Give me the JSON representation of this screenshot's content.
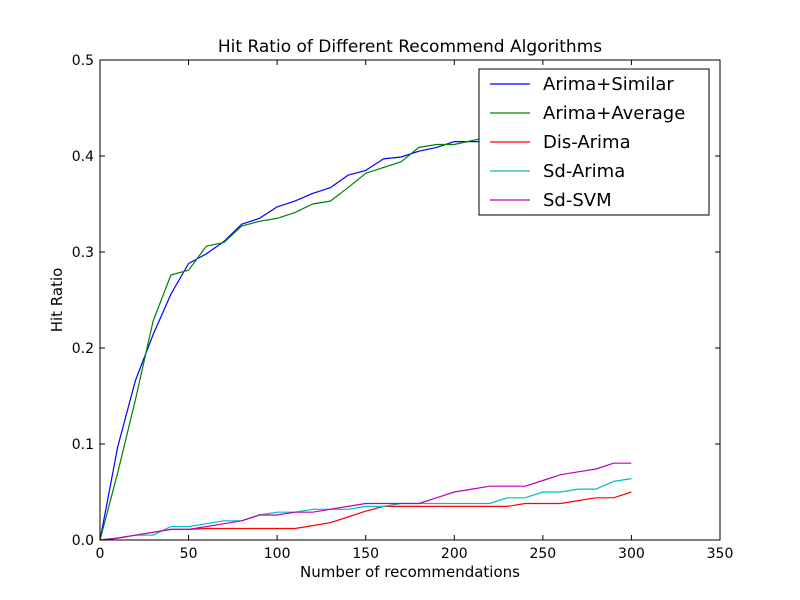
{
  "chart_data": {
    "type": "line",
    "title": "Hit Ratio of Different Recommend Algorithms",
    "xlabel": "Number of recommendations",
    "ylabel": "Hit Ratio",
    "xlim": [
      0,
      350
    ],
    "ylim": [
      0,
      0.5
    ],
    "xticks": [
      0,
      50,
      100,
      150,
      200,
      250,
      300,
      350
    ],
    "yticks": [
      0.0,
      0.1,
      0.2,
      0.3,
      0.4,
      0.5
    ],
    "xtick_labels": [
      "0",
      "50",
      "100",
      "150",
      "200",
      "250",
      "300",
      "350"
    ],
    "ytick_labels": [
      "0.0",
      "0.1",
      "0.2",
      "0.3",
      "0.4",
      "0.5"
    ],
    "grid": false,
    "legend_position": "top-right",
    "series": [
      {
        "name": "Arima+Similar",
        "color": "#0000ff",
        "x": [
          0,
          10,
          20,
          30,
          40,
          50,
          60,
          70,
          80,
          90,
          100,
          110,
          120,
          130,
          140,
          150,
          160,
          170,
          180,
          190,
          200,
          210,
          220
        ],
        "y": [
          0.0,
          0.097,
          0.166,
          0.214,
          0.256,
          0.288,
          0.298,
          0.311,
          0.329,
          0.335,
          0.347,
          0.353,
          0.361,
          0.367,
          0.38,
          0.385,
          0.397,
          0.399,
          0.405,
          0.409,
          0.415,
          0.415,
          0.415
        ]
      },
      {
        "name": "Arima+Average",
        "color": "#008000",
        "x": [
          0,
          10,
          20,
          30,
          40,
          50,
          60,
          70,
          80,
          90,
          100,
          110,
          120,
          130,
          140,
          150,
          160,
          170,
          180,
          190,
          200,
          210,
          220
        ],
        "y": [
          0.0,
          0.07,
          0.146,
          0.228,
          0.276,
          0.281,
          0.306,
          0.31,
          0.327,
          0.332,
          0.335,
          0.341,
          0.35,
          0.353,
          0.367,
          0.382,
          0.388,
          0.394,
          0.409,
          0.412,
          0.412,
          0.416,
          0.42
        ]
      },
      {
        "name": "Dis-Arima",
        "color": "#ff0000",
        "x": [
          0,
          10,
          20,
          30,
          40,
          50,
          60,
          70,
          80,
          90,
          100,
          110,
          120,
          130,
          140,
          150,
          160,
          170,
          180,
          190,
          200,
          210,
          220,
          230,
          240,
          250,
          260,
          270,
          280,
          290,
          300
        ],
        "y": [
          0.0,
          0.002,
          0.005,
          0.008,
          0.011,
          0.011,
          0.012,
          0.012,
          0.012,
          0.012,
          0.012,
          0.012,
          0.015,
          0.018,
          0.024,
          0.03,
          0.035,
          0.035,
          0.035,
          0.035,
          0.035,
          0.035,
          0.035,
          0.035,
          0.038,
          0.038,
          0.038,
          0.041,
          0.044,
          0.044,
          0.05
        ]
      },
      {
        "name": "Sd-Arima",
        "color": "#00bfbf",
        "x": [
          0,
          10,
          20,
          30,
          40,
          50,
          60,
          70,
          80,
          90,
          100,
          110,
          120,
          130,
          140,
          150,
          160,
          170,
          180,
          190,
          200,
          210,
          220,
          230,
          240,
          250,
          260,
          270,
          280,
          290,
          300
        ],
        "y": [
          0.0,
          0.002,
          0.005,
          0.005,
          0.014,
          0.014,
          0.017,
          0.02,
          0.02,
          0.026,
          0.029,
          0.029,
          0.032,
          0.032,
          0.032,
          0.035,
          0.035,
          0.038,
          0.038,
          0.038,
          0.038,
          0.038,
          0.038,
          0.044,
          0.044,
          0.05,
          0.05,
          0.053,
          0.053,
          0.061,
          0.064
        ]
      },
      {
        "name": "Sd-SVM",
        "color": "#bf00bf",
        "x": [
          0,
          10,
          20,
          30,
          40,
          50,
          60,
          70,
          80,
          90,
          100,
          110,
          120,
          130,
          140,
          150,
          160,
          170,
          180,
          190,
          200,
          210,
          220,
          230,
          240,
          250,
          260,
          270,
          280,
          290,
          300
        ],
        "y": [
          0.0,
          0.002,
          0.005,
          0.008,
          0.011,
          0.011,
          0.014,
          0.017,
          0.02,
          0.026,
          0.026,
          0.029,
          0.029,
          0.032,
          0.035,
          0.038,
          0.038,
          0.038,
          0.038,
          0.044,
          0.05,
          0.053,
          0.056,
          0.056,
          0.056,
          0.062,
          0.068,
          0.071,
          0.074,
          0.08,
          0.08
        ]
      }
    ]
  }
}
